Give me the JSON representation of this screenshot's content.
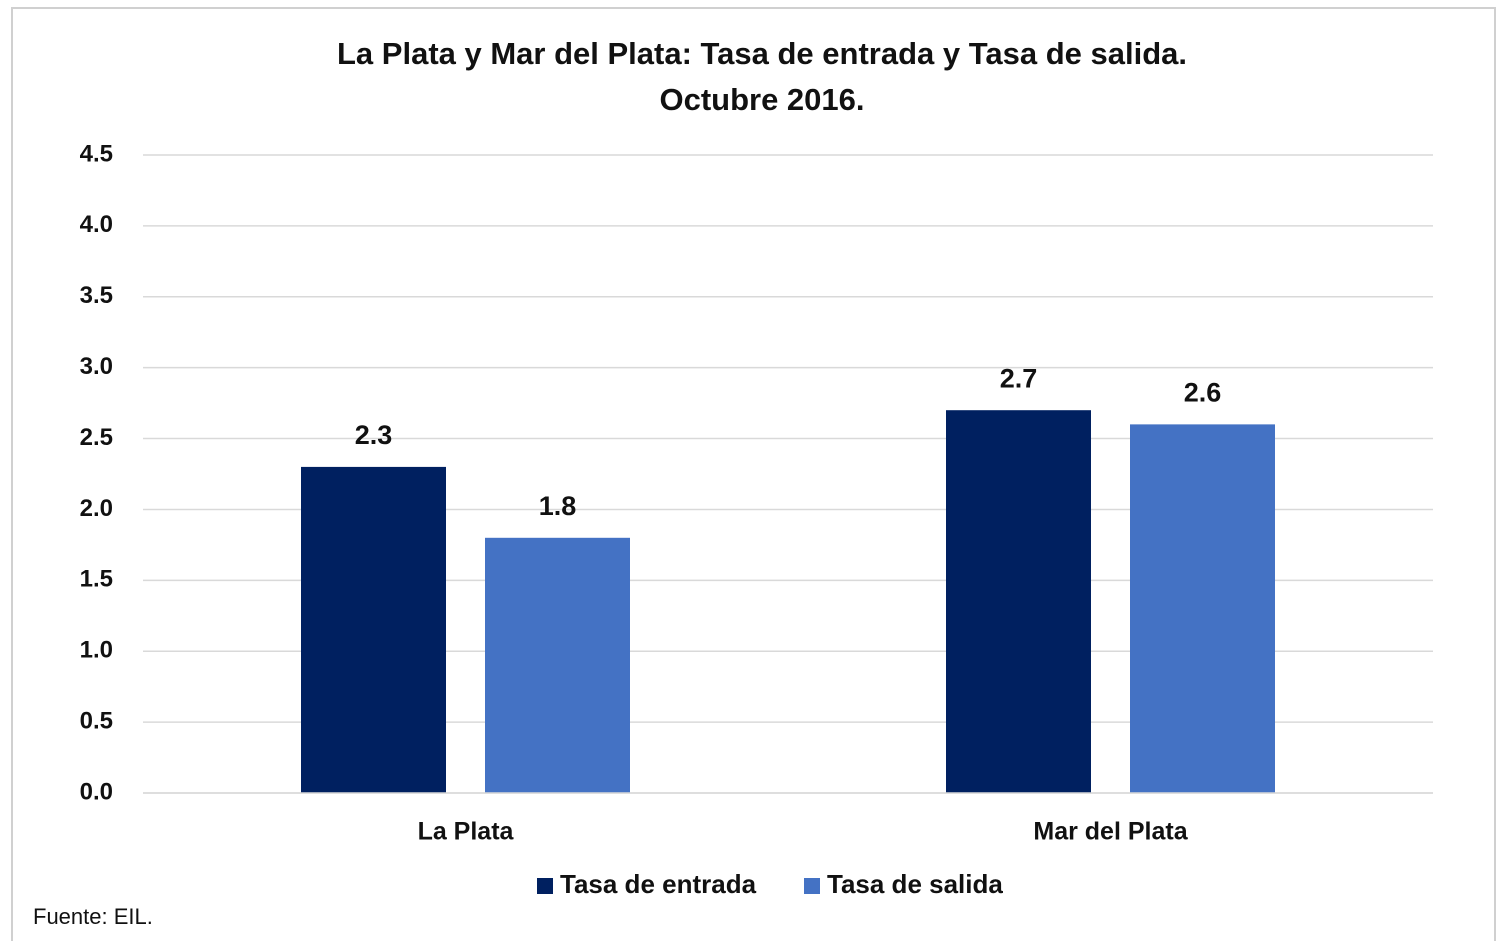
{
  "chart_data": {
    "type": "bar",
    "title": [
      "La Plata y Mar del Plata: Tasa de entrada y Tasa de salida.",
      "Octubre 2016."
    ],
    "categories": [
      "La Plata",
      "Mar del Plata"
    ],
    "series": [
      {
        "name": "Tasa de entrada",
        "color": "#002060",
        "values": [
          2.3,
          2.7
        ]
      },
      {
        "name": "Tasa de salida",
        "color": "#4472c4",
        "values": [
          1.8,
          2.6
        ]
      }
    ],
    "ylim": [
      0,
      4.5
    ],
    "yticks": [
      {
        "value": 0,
        "label": "0.0"
      },
      0.5,
      {
        "value": 1,
        "label": "1.0"
      },
      1.5,
      {
        "value": 2,
        "label": "2.0"
      },
      2.5,
      {
        "value": 3,
        "label": "3.0"
      },
      3.5,
      {
        "value": 4,
        "label": "4.0"
      },
      4.5
    ],
    "grid": true,
    "legend": "bottom",
    "source": "Fuente: EIL."
  }
}
